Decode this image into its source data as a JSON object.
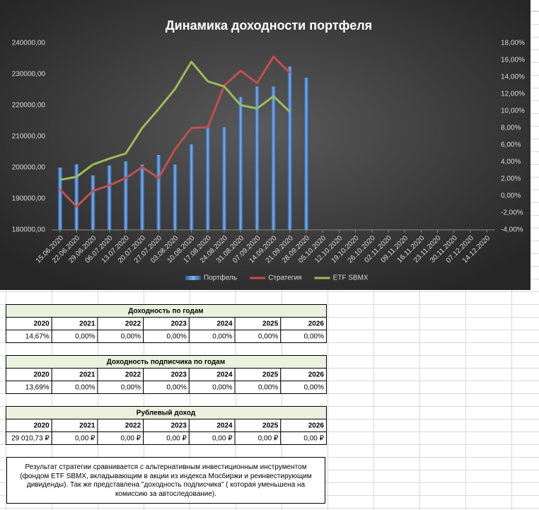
{
  "chart_data": {
    "type": "combo",
    "title": "Динамика доходности портфеля",
    "categories": [
      "15.06.2020",
      "22.06.2020",
      "29.06.2020",
      "06.07.2020",
      "13.07.2020",
      "20.07.2020",
      "27.07.2020",
      "03.08.2020",
      "10.08.2020",
      "17.08.2020",
      "24.08.2020",
      "31.08.2020",
      "07.09.2020",
      "14.09.2020",
      "21.09.2020",
      "28.09.2020",
      "05.10.2020",
      "12.10.2020",
      "19.10.2020",
      "26.10.2020",
      "02.11.2020",
      "09.11.2020",
      "16.11.2020",
      "23.11.2020",
      "30.11.2020",
      "07.12.2020",
      "14.12.2020"
    ],
    "series": [
      {
        "name": "Портфель",
        "type": "bar",
        "color": "#4f81bd",
        "values": [
          200000,
          201100,
          197500,
          200700,
          202000,
          201000,
          204100,
          201000,
          207500,
          213000,
          213000,
          222700,
          226100,
          226100,
          232500,
          228900,
          null,
          null,
          null,
          null,
          null,
          null,
          null,
          null,
          null,
          null,
          null
        ]
      },
      {
        "name": "Стратегия",
        "type": "line",
        "axis": "y2",
        "color": "#c0504d",
        "values": [
          0.75,
          -1.25,
          0.6,
          1.25,
          2.1,
          3.4,
          2.1,
          5.5,
          8.0,
          8.1,
          13.0,
          14.75,
          13.3,
          16.4,
          14.5,
          null,
          null,
          null,
          null,
          null,
          null,
          null,
          null,
          null,
          null,
          null,
          null
        ]
      },
      {
        "name": "ETF SBMX",
        "type": "line",
        "axis": "y2",
        "color": "#9bbb59",
        "values": [
          1.9,
          2.25,
          3.7,
          4.4,
          5.0,
          8.0,
          10.25,
          12.6,
          15.8,
          13.5,
          12.9,
          10.7,
          10.3,
          11.75,
          9.9,
          null,
          null,
          null,
          null,
          null,
          null,
          null,
          null,
          null,
          null,
          null,
          null
        ]
      }
    ],
    "ylim": [
      180000,
      240000
    ],
    "yticks": [
      {
        "value": 180000,
        "label": "180000,00"
      },
      {
        "value": 190000,
        "label": "190000,00"
      },
      {
        "value": 200000,
        "label": "200000,00"
      },
      {
        "value": 210000,
        "label": "210000,00"
      },
      {
        "value": 220000,
        "label": "220000,00"
      },
      {
        "value": 230000,
        "label": "230000,00"
      },
      {
        "value": 240000,
        "label": "240000,00"
      }
    ],
    "y2lim": [
      -4,
      18
    ],
    "y2ticks": [
      {
        "value": -4,
        "label": "-4,00%"
      },
      {
        "value": -2,
        "label": "-2,00%"
      },
      {
        "value": 0,
        "label": "0,00%"
      },
      {
        "value": 2,
        "label": "2,00%"
      },
      {
        "value": 4,
        "label": "4,00%"
      },
      {
        "value": 6,
        "label": "6,00%"
      },
      {
        "value": 8,
        "label": "8,00%"
      },
      {
        "value": 10,
        "label": "10,00%"
      },
      {
        "value": 12,
        "label": "12,00%"
      },
      {
        "value": 14,
        "label": "14,00%"
      },
      {
        "value": 16,
        "label": "16,00%"
      },
      {
        "value": 18,
        "label": "18,00%"
      }
    ],
    "legend": "bottom"
  },
  "tables": [
    {
      "title": "Доходность по годам",
      "header": [
        "2020",
        "2021",
        "2022",
        "2023",
        "2024",
        "2025",
        "2026"
      ],
      "rows": [
        [
          "14,67%",
          "0,00%",
          "0,00%",
          "0,00%",
          "0,00%",
          "0,00%",
          "0,00%"
        ]
      ]
    },
    {
      "title": "Доходность подписчика по годам",
      "header": [
        "2020",
        "2021",
        "2022",
        "2023",
        "2024",
        "2025",
        "2026"
      ],
      "rows": [
        [
          "13,69%",
          "0,00%",
          "0,00%",
          "0,00%",
          "0,00%",
          "0,00%",
          "0,00%"
        ]
      ]
    },
    {
      "title": "Рублевый доход",
      "header": [
        "2020",
        "2021",
        "2022",
        "2023",
        "2024",
        "2025",
        "2026"
      ],
      "rows": [
        [
          "29 010,73 ₽",
          "0,00 ₽",
          "0,00 ₽",
          "0,00 ₽",
          "0,00 ₽",
          "0,00 ₽",
          "0,00 ₽"
        ]
      ]
    }
  ],
  "note": "Результат стратегии сравнивается с альтернативным инвестиционным инструментом (фондом ETF SBMX, вкладывающим в акции из индекса Мосбиржи и реинвестирующим дивиденды). Так же представлена \"доходность подписчика\" ( которая уменьшена на комиссию за автоследование)."
}
